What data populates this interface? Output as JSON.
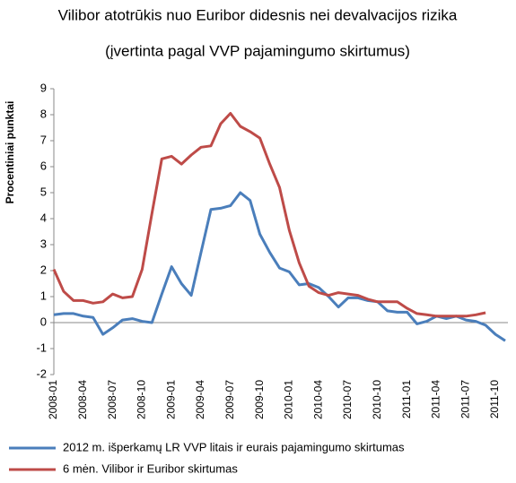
{
  "chart_data": {
    "type": "line",
    "title": "Vilibor atotrūkis nuo Euribor didesnis nei devalvacijos rizika",
    "subtitle": "(įvertinta pagal VVP pajamingumo skirtumus)",
    "y_label": "Procentiniai punktai",
    "categories": [
      "2008-01",
      null,
      null,
      "2008-04",
      null,
      null,
      "2008-07",
      null,
      null,
      "2008-10",
      null,
      null,
      "2009-01",
      null,
      null,
      "2009-04",
      null,
      null,
      "2009-07",
      null,
      null,
      "2009-10",
      null,
      null,
      "2010-01",
      null,
      null,
      "2010-04",
      null,
      null,
      "2010-07",
      null,
      null,
      "2010-10",
      null,
      null,
      "2011-01",
      null,
      null,
      "2011-04",
      null,
      null,
      "2011-07",
      null,
      null,
      "2011-10",
      null
    ],
    "series": [
      {
        "name": "2012 m. išperkamų LR VVP litais ir eurais pajamingumo skirtumas",
        "color": "#4a7ebb",
        "values": [
          0.3,
          0.35,
          0.35,
          0.25,
          0.2,
          -0.45,
          -0.2,
          0.1,
          0.15,
          0.05,
          0.0,
          1.1,
          2.15,
          1.5,
          1.05,
          2.7,
          4.35,
          4.4,
          4.5,
          5.0,
          4.7,
          3.4,
          2.7,
          2.1,
          1.95,
          1.45,
          1.5,
          1.35,
          1.0,
          0.6,
          0.95,
          0.95,
          0.85,
          0.8,
          0.45,
          0.4,
          0.4,
          -0.05,
          0.05,
          0.25,
          0.15,
          0.25,
          0.1,
          0.05,
          -0.1,
          -0.45,
          -0.7
        ]
      },
      {
        "name": "6 mėn. Vilibor ir Euribor skirtumas",
        "color": "#be4b48",
        "values": [
          2.05,
          1.2,
          0.85,
          0.85,
          0.75,
          0.8,
          1.1,
          0.95,
          1.0,
          2.05,
          4.2,
          6.3,
          6.4,
          6.1,
          6.45,
          6.75,
          6.8,
          7.65,
          8.05,
          7.55,
          7.35,
          7.1,
          6.1,
          5.2,
          3.55,
          2.3,
          1.4,
          1.15,
          1.05,
          1.15,
          1.1,
          1.05,
          0.9,
          0.8,
          0.8,
          0.8,
          0.55,
          0.35,
          0.3,
          0.25,
          0.25,
          0.25,
          0.25,
          0.3,
          0.38,
          null,
          null
        ]
      }
    ],
    "ylim": [
      -2,
      9
    ],
    "yticks": [
      -2,
      -1,
      0,
      1,
      2,
      3,
      4,
      5,
      6,
      7,
      8,
      9
    ],
    "grid": false
  }
}
